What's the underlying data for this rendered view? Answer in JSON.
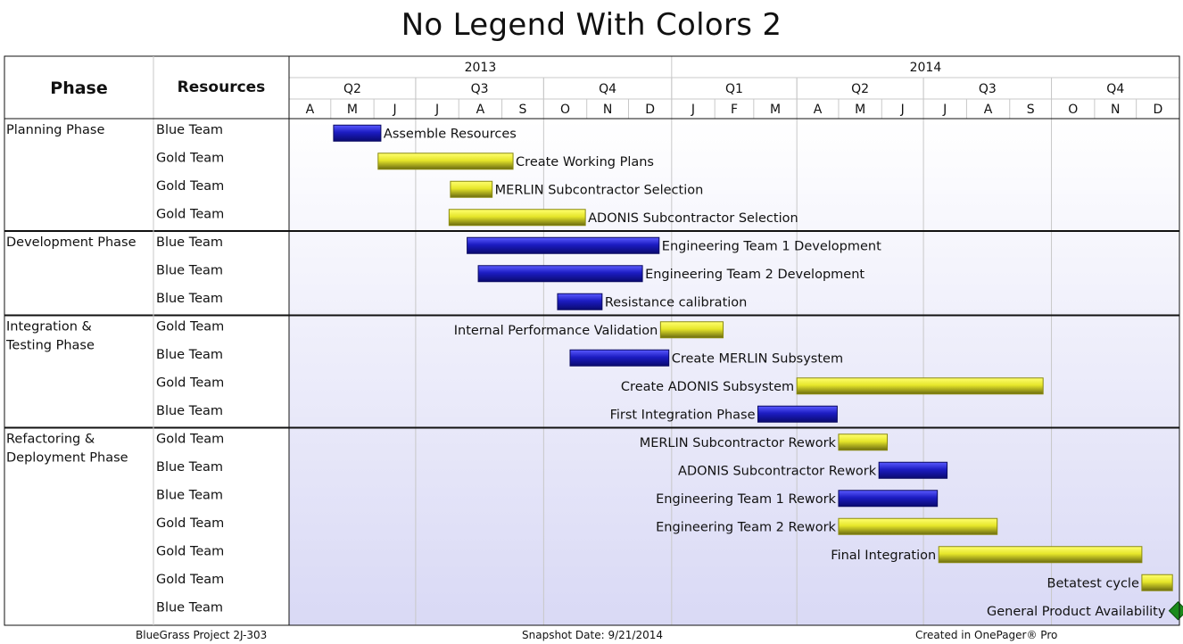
{
  "title": "No Legend With Colors 2",
  "colors": {
    "blue_team": "#1c1cc2",
    "gold_team": "#e6e62a",
    "milestone": "#1a8a1a",
    "grid": "#c8c8c8",
    "band_top": "#ffffff",
    "band_bottom": "#d9d9f5"
  },
  "headers": {
    "phase": "Phase",
    "resources": "Resources"
  },
  "timeline": {
    "years": [
      {
        "label": "2013",
        "start": "2013-04-01",
        "end": "2014-01-01"
      },
      {
        "label": "2014",
        "start": "2014-01-01",
        "end": "2015-01-01"
      }
    ],
    "quarters": [
      {
        "label": "Q2",
        "start": "2013-04-01",
        "end": "2013-07-01"
      },
      {
        "label": "Q3",
        "start": "2013-07-01",
        "end": "2013-10-01"
      },
      {
        "label": "Q4",
        "start": "2013-10-01",
        "end": "2014-01-01"
      },
      {
        "label": "Q1",
        "start": "2014-01-01",
        "end": "2014-04-01"
      },
      {
        "label": "Q2",
        "start": "2014-04-01",
        "end": "2014-07-01"
      },
      {
        "label": "Q3",
        "start": "2014-07-01",
        "end": "2014-10-01"
      },
      {
        "label": "Q4",
        "start": "2014-10-01",
        "end": "2015-01-01"
      }
    ],
    "months": [
      "A",
      "M",
      "J",
      "J",
      "A",
      "S",
      "O",
      "N",
      "D",
      "J",
      "F",
      "M",
      "A",
      "M",
      "J",
      "J",
      "A",
      "S",
      "O",
      "N",
      "D"
    ],
    "start": "2013-04-01",
    "end": "2015-01-01"
  },
  "chart_data": {
    "type": "gantt",
    "title": "No Legend With Colors 2",
    "phases": [
      {
        "name": "Planning Phase",
        "tasks": [
          {
            "resource": "Blue Team",
            "label": "Assemble Resources",
            "start": "2013-05-03",
            "end": "2013-06-06",
            "color": "blue"
          },
          {
            "resource": "Gold Team",
            "label": "Create Working Plans",
            "start": "2013-06-04",
            "end": "2013-09-09",
            "color": "gold"
          },
          {
            "resource": "Gold Team",
            "label": "MERLIN Subcontractor Selection",
            "start": "2013-07-26",
            "end": "2013-08-25",
            "color": "gold"
          },
          {
            "resource": "Gold Team",
            "label": "ADONIS Subcontractor Selection",
            "start": "2013-07-25",
            "end": "2013-10-31",
            "color": "gold"
          }
        ]
      },
      {
        "name": "Development Phase",
        "tasks": [
          {
            "resource": "Blue Team",
            "label": "Engineering Team 1 Development",
            "start": "2013-08-07",
            "end": "2013-12-23",
            "color": "blue"
          },
          {
            "resource": "Blue Team",
            "label": "Engineering Team 2 Development",
            "start": "2013-08-15",
            "end": "2013-12-11",
            "color": "blue"
          },
          {
            "resource": "Blue Team",
            "label": "Resistance calibration",
            "start": "2013-10-11",
            "end": "2013-11-12",
            "color": "blue"
          }
        ]
      },
      {
        "name": "Integration & Testing Phase",
        "tasks": [
          {
            "resource": "Gold Team",
            "label": "Internal Performance Validation",
            "start": "2013-12-24",
            "end": "2014-02-07",
            "color": "gold"
          },
          {
            "resource": "Blue Team",
            "label": "Create MERLIN Subsystem",
            "start": "2013-10-20",
            "end": "2013-12-30",
            "color": "blue"
          },
          {
            "resource": "Gold Team",
            "label": "Create ADONIS Subsystem",
            "start": "2014-04-01",
            "end": "2014-09-25",
            "color": "gold"
          },
          {
            "resource": "Blue Team",
            "label": "First Integration Phase",
            "start": "2014-03-04",
            "end": "2014-04-30",
            "color": "blue"
          }
        ]
      },
      {
        "name": "Refactoring & Deployment Phase",
        "tasks": [
          {
            "resource": "Gold Team",
            "label": "MERLIN Subcontractor Rework",
            "start": "2014-05-01",
            "end": "2014-06-05",
            "color": "gold"
          },
          {
            "resource": "Blue Team",
            "label": "ADONIS Subcontractor Rework",
            "start": "2014-05-30",
            "end": "2014-07-18",
            "color": "blue"
          },
          {
            "resource": "Blue Team",
            "label": "Engineering Team 1 Rework",
            "start": "2014-05-01",
            "end": "2014-07-11",
            "color": "blue"
          },
          {
            "resource": "Gold Team",
            "label": "Engineering Team 2 Rework",
            "start": "2014-05-01",
            "end": "2014-08-23",
            "color": "gold"
          },
          {
            "resource": "Gold Team",
            "label": "Final Integration",
            "start": "2014-07-12",
            "end": "2014-12-05",
            "color": "gold"
          },
          {
            "resource": "Gold Team",
            "label": "Betatest cycle",
            "start": "2014-12-05",
            "end": "2014-12-27",
            "color": "gold"
          },
          {
            "resource": "Blue Team",
            "label": "General Product Availability",
            "start": "2014-12-31",
            "end": "2014-12-31",
            "color": "milestone",
            "milestone": true
          }
        ]
      }
    ]
  },
  "footer": {
    "project": "BlueGrass Project 2J-303",
    "snapshot": "Snapshot Date: 9/21/2014",
    "created": "Created in OnePager® Pro"
  }
}
